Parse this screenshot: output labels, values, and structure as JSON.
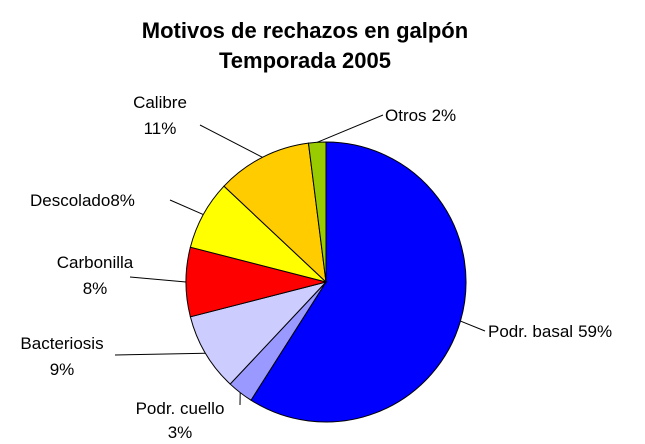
{
  "chart_data": {
    "type": "pie",
    "title": "Motivos de rechazos en galpón",
    "subtitle": "Temporada 2005",
    "categories": [
      "Podr. basal",
      "Podr. cuello",
      "Bacteriosis",
      "Carbonilla",
      "Descolado",
      "Calibre",
      "Otros"
    ],
    "values": [
      59,
      3,
      9,
      8,
      8,
      11,
      2
    ],
    "value_labels": [
      "59%",
      "3%",
      "9%",
      "8%",
      "8%",
      "11%",
      "2%"
    ],
    "colors": [
      "#0000ff",
      "#9999ff",
      "#ccccff",
      "#ff0000",
      "#ffff00",
      "#ffcc00",
      "#99cc00"
    ],
    "start_angle": 0,
    "direction": "clockwise"
  }
}
